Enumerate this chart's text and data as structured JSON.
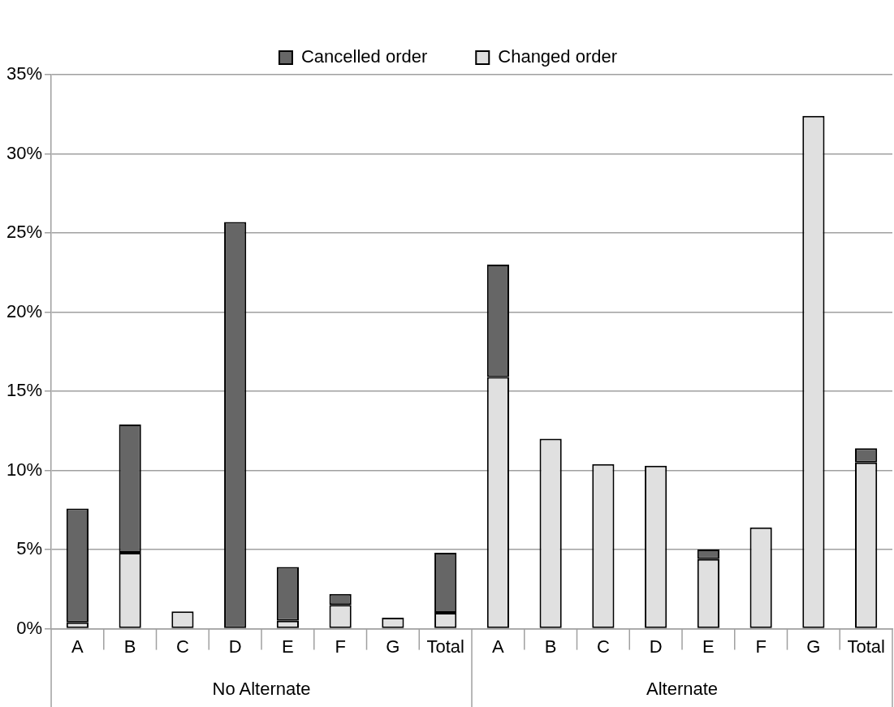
{
  "chart_data": {
    "type": "bar",
    "stacked": true,
    "categories": [
      "A",
      "B",
      "C",
      "D",
      "E",
      "F",
      "G",
      "Total",
      "A",
      "B",
      "C",
      "D",
      "E",
      "F",
      "G",
      "Total"
    ],
    "series": [
      {
        "name": "Changed order",
        "color": "#e0e0e0",
        "values": [
          0.4,
          4.8,
          1.1,
          0,
          0.5,
          1.5,
          0.7,
          1.0,
          15.9,
          12.0,
          10.4,
          10.3,
          4.4,
          6.4,
          32.4,
          10.5
        ]
      },
      {
        "name": "Cancelled order",
        "color": "#666666",
        "values": [
          7.2,
          8.1,
          0,
          25.7,
          3.4,
          0.7,
          0,
          3.8,
          7.1,
          0,
          0,
          0,
          0.6,
          0,
          0,
          0.9
        ]
      }
    ],
    "ylim": [
      0,
      35
    ],
    "yticks": [
      {
        "value": 0,
        "label": "0%"
      },
      {
        "value": 5,
        "label": "5%"
      },
      {
        "value": 10,
        "label": "10%"
      },
      {
        "value": 15,
        "label": "15%"
      },
      {
        "value": 20,
        "label": "20%"
      },
      {
        "value": 25,
        "label": "25%"
      },
      {
        "value": 30,
        "label": "30%"
      },
      {
        "value": 35,
        "label": "35%"
      }
    ],
    "grid": "y",
    "legend": "top",
    "annotations": [
      "No Alternate",
      "Alternate"
    ]
  }
}
